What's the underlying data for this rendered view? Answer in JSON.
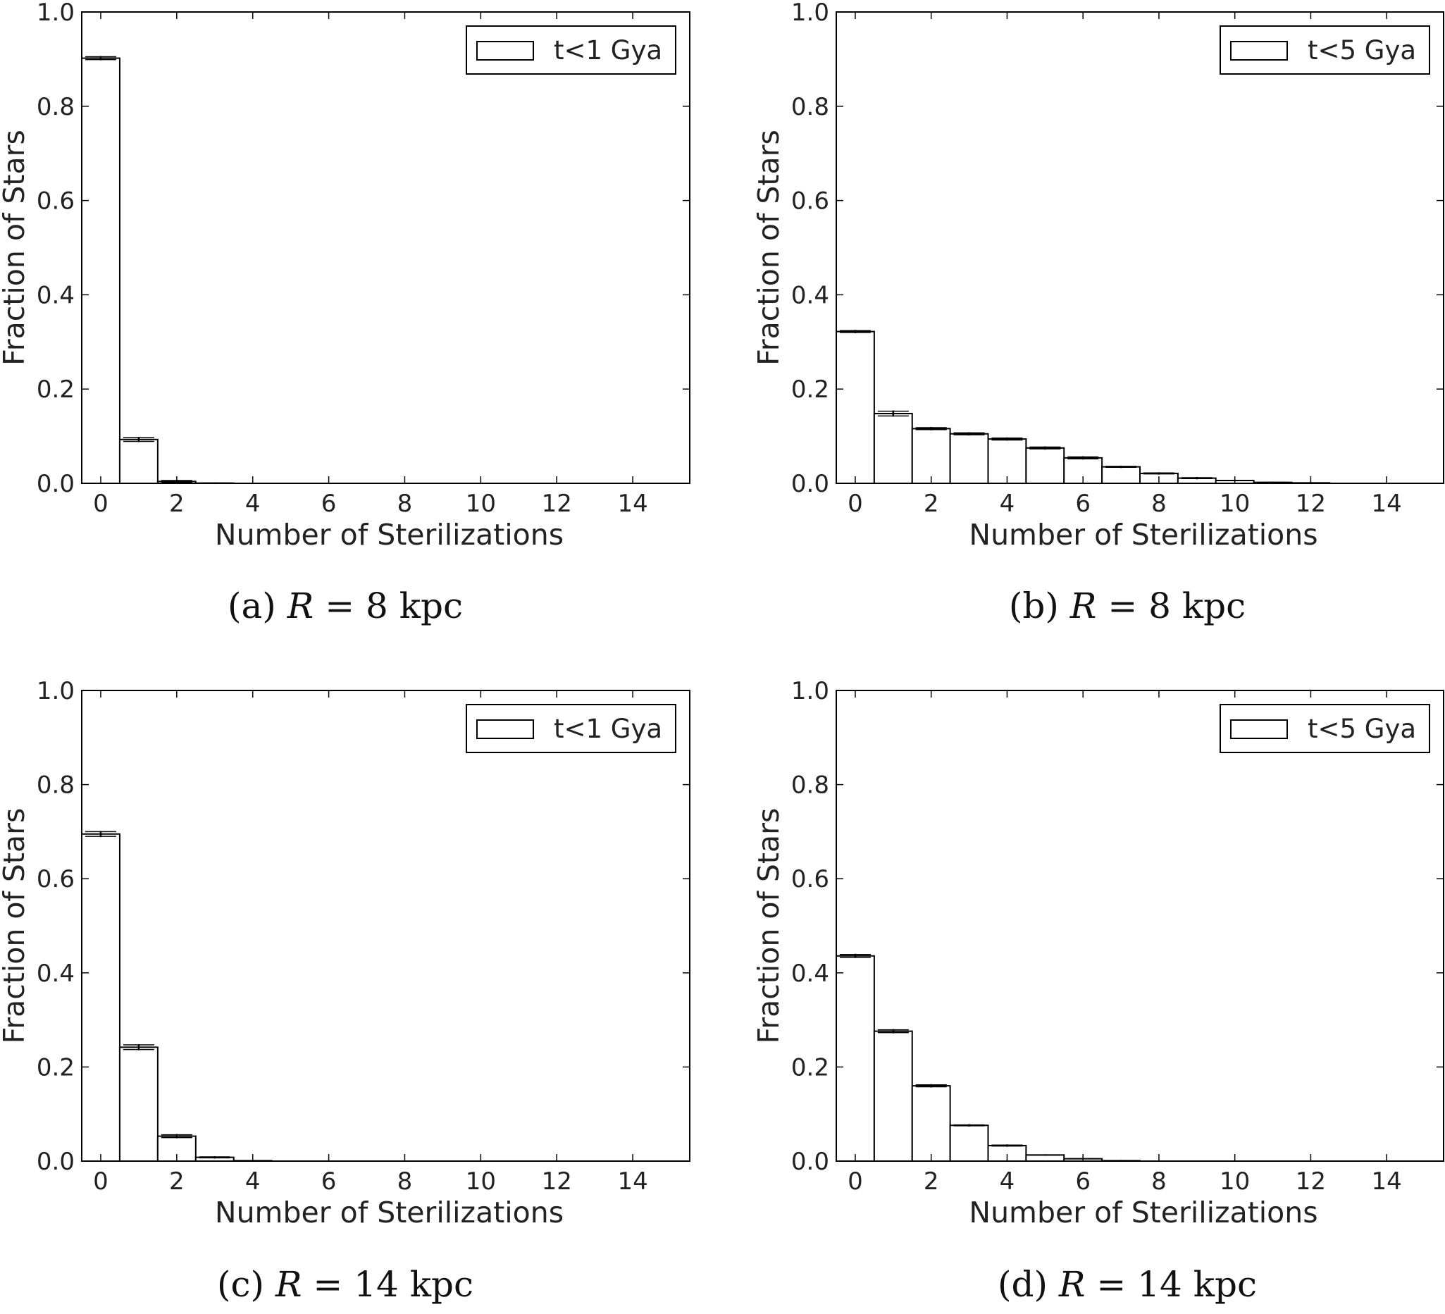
{
  "panels": [
    {
      "caption": {
        "label": "(a)",
        "var": "R",
        "eq": "= 8 kpc"
      },
      "legend": "t<1 Gya",
      "chart_data": {
        "type": "bar",
        "xlabel": "Number of Sterilizations",
        "ylabel": "Fraction of Stars",
        "xlim": [
          -0.5,
          15.5
        ],
        "ylim": [
          0,
          1.0
        ],
        "xticks": [
          0,
          2,
          4,
          6,
          8,
          10,
          12,
          14
        ],
        "yticks": [
          0.0,
          0.2,
          0.4,
          0.6,
          0.8,
          1.0
        ],
        "xtick_labels": [
          "0",
          "2",
          "4",
          "6",
          "8",
          "10",
          "12",
          "14"
        ],
        "ytick_labels": [
          "0.0",
          "0.2",
          "0.4",
          "0.6",
          "0.8",
          "1.0"
        ],
        "bins": [
          0,
          1,
          2,
          3
        ],
        "values": [
          0.902,
          0.093,
          0.004,
          0.0005
        ],
        "errors": [
          0.003,
          0.004,
          0.002,
          0.0
        ]
      }
    },
    {
      "caption": {
        "label": "(b)",
        "var": "R",
        "eq": "= 8 kpc"
      },
      "legend": "t<5 Gya",
      "chart_data": {
        "type": "bar",
        "xlabel": "Number of Sterilizations",
        "ylabel": "Fraction of Stars",
        "xlim": [
          -0.5,
          15.5
        ],
        "ylim": [
          0,
          1.0
        ],
        "xticks": [
          0,
          2,
          4,
          6,
          8,
          10,
          12,
          14
        ],
        "yticks": [
          0.0,
          0.2,
          0.4,
          0.6,
          0.8,
          1.0
        ],
        "xtick_labels": [
          "0",
          "2",
          "4",
          "6",
          "8",
          "10",
          "12",
          "14"
        ],
        "ytick_labels": [
          "0.0",
          "0.2",
          "0.4",
          "0.6",
          "0.8",
          "1.0"
        ],
        "bins": [
          0,
          1,
          2,
          3,
          4,
          5,
          6,
          7,
          8,
          9,
          10,
          11,
          12
        ],
        "values": [
          0.322,
          0.148,
          0.116,
          0.105,
          0.094,
          0.075,
          0.054,
          0.035,
          0.021,
          0.011,
          0.006,
          0.002,
          0.001
        ],
        "errors": [
          0.002,
          0.005,
          0.002,
          0.002,
          0.002,
          0.002,
          0.002,
          0.001,
          0.001,
          0.001,
          0.0,
          0.0,
          0.0
        ]
      }
    },
    {
      "caption": {
        "label": "(c)",
        "var": "R",
        "eq": "= 14 kpc"
      },
      "legend": "t<1 Gya",
      "chart_data": {
        "type": "bar",
        "xlabel": "Number of Sterilizations",
        "ylabel": "Fraction of Stars",
        "xlim": [
          -0.5,
          15.5
        ],
        "ylim": [
          0,
          1.0
        ],
        "xticks": [
          0,
          2,
          4,
          6,
          8,
          10,
          12,
          14
        ],
        "yticks": [
          0.0,
          0.2,
          0.4,
          0.6,
          0.8,
          1.0
        ],
        "xtick_labels": [
          "0",
          "2",
          "4",
          "6",
          "8",
          "10",
          "12",
          "14"
        ],
        "ytick_labels": [
          "0.0",
          "0.2",
          "0.4",
          "0.6",
          "0.8",
          "1.0"
        ],
        "bins": [
          0,
          1,
          2,
          3,
          4
        ],
        "values": [
          0.695,
          0.242,
          0.053,
          0.008,
          0.001
        ],
        "errors": [
          0.005,
          0.005,
          0.003,
          0.001,
          0.0
        ]
      }
    },
    {
      "caption": {
        "label": "(d)",
        "var": "R",
        "eq": "= 14 kpc"
      },
      "legend": "t<5 Gya",
      "chart_data": {
        "type": "bar",
        "xlabel": "Number of Sterilizations",
        "ylabel": "Fraction of Stars",
        "xlim": [
          -0.5,
          15.5
        ],
        "ylim": [
          0,
          1.0
        ],
        "xticks": [
          0,
          2,
          4,
          6,
          8,
          10,
          12,
          14
        ],
        "yticks": [
          0.0,
          0.2,
          0.4,
          0.6,
          0.8,
          1.0
        ],
        "xtick_labels": [
          "0",
          "2",
          "4",
          "6",
          "8",
          "10",
          "12",
          "14"
        ],
        "ytick_labels": [
          "0.0",
          "0.2",
          "0.4",
          "0.6",
          "0.8",
          "1.0"
        ],
        "bins": [
          0,
          1,
          2,
          3,
          4,
          5,
          6,
          7
        ],
        "values": [
          0.436,
          0.276,
          0.16,
          0.076,
          0.033,
          0.013,
          0.005,
          0.001
        ],
        "errors": [
          0.003,
          0.003,
          0.002,
          0.001,
          0.001,
          0.0,
          0.0,
          0.0
        ]
      }
    }
  ]
}
